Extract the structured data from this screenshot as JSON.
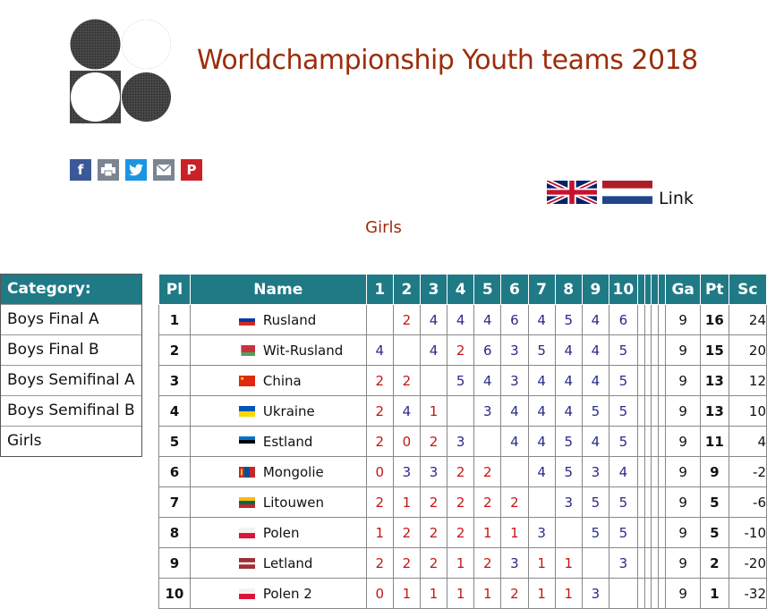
{
  "title": "Worldchampionship Youth teams 2018",
  "subtitle": "Girls",
  "link_label": "Link",
  "colors": {
    "accent": "#9b2d0c",
    "header_bg": "#1f7a86",
    "score_blue": "#2a2a8a",
    "score_red": "#c81414"
  },
  "share_icons": [
    "facebook-icon",
    "print-icon",
    "twitter-icon",
    "email-icon",
    "pinterest-icon"
  ],
  "language_flags": [
    "uk-flag",
    "netherlands-flag"
  ],
  "sidebar": {
    "header": "Category:",
    "items": [
      "Boys Final A",
      "Boys Final B",
      "Boys Semifinal A",
      "Boys Semifinal B",
      "Girls"
    ]
  },
  "table": {
    "headers": {
      "pl": "Pl",
      "name": "Name",
      "rounds": [
        "1",
        "2",
        "3",
        "4",
        "5",
        "6",
        "7",
        "8",
        "9",
        "10",
        "",
        "",
        "",
        ""
      ],
      "ga": "Ga",
      "pt": "Pt",
      "sc": "Sc"
    },
    "rows": [
      {
        "pl": "1",
        "name": "Rusland",
        "flag": "russia",
        "scores": [
          "",
          "2",
          "4",
          "4",
          "4",
          "6",
          "4",
          "5",
          "4",
          "6"
        ],
        "ga": "9",
        "pt": "16",
        "sc": "24"
      },
      {
        "pl": "2",
        "name": "Wit-Rusland",
        "flag": "belarus",
        "scores": [
          "4",
          "",
          "4",
          "2",
          "6",
          "3",
          "5",
          "4",
          "4",
          "5"
        ],
        "ga": "9",
        "pt": "15",
        "sc": "20"
      },
      {
        "pl": "3",
        "name": "China",
        "flag": "china",
        "scores": [
          "2",
          "2",
          "",
          "5",
          "4",
          "3",
          "4",
          "4",
          "4",
          "5"
        ],
        "ga": "9",
        "pt": "13",
        "sc": "12"
      },
      {
        "pl": "4",
        "name": "Ukraine",
        "flag": "ukraine",
        "scores": [
          "2",
          "4",
          "1",
          "",
          "3",
          "4",
          "4",
          "4",
          "5",
          "5"
        ],
        "ga": "9",
        "pt": "13",
        "sc": "10"
      },
      {
        "pl": "5",
        "name": "Estland",
        "flag": "estonia",
        "scores": [
          "2",
          "0",
          "2",
          "3",
          "",
          "4",
          "4",
          "5",
          "4",
          "5"
        ],
        "ga": "9",
        "pt": "11",
        "sc": "4"
      },
      {
        "pl": "6",
        "name": "Mongolie",
        "flag": "mongolia",
        "scores": [
          "0",
          "3",
          "3",
          "2",
          "2",
          "",
          "4",
          "5",
          "3",
          "4"
        ],
        "ga": "9",
        "pt": "9",
        "sc": "-2"
      },
      {
        "pl": "7",
        "name": "Litouwen",
        "flag": "lithuania",
        "scores": [
          "2",
          "1",
          "2",
          "2",
          "2",
          "2",
          "",
          "3",
          "5",
          "5"
        ],
        "ga": "9",
        "pt": "5",
        "sc": "-6"
      },
      {
        "pl": "8",
        "name": "Polen",
        "flag": "poland",
        "scores": [
          "1",
          "2",
          "2",
          "2",
          "1",
          "1",
          "3",
          "",
          "5",
          "5"
        ],
        "ga": "9",
        "pt": "5",
        "sc": "-10"
      },
      {
        "pl": "9",
        "name": "Letland",
        "flag": "latvia",
        "scores": [
          "2",
          "2",
          "2",
          "1",
          "2",
          "3",
          "1",
          "1",
          "",
          "3"
        ],
        "ga": "9",
        "pt": "2",
        "sc": "-20"
      },
      {
        "pl": "10",
        "name": "Polen 2",
        "flag": "poland",
        "scores": [
          "0",
          "1",
          "1",
          "1",
          "1",
          "2",
          "1",
          "1",
          "3",
          ""
        ],
        "ga": "9",
        "pt": "1",
        "sc": "-32"
      }
    ]
  }
}
